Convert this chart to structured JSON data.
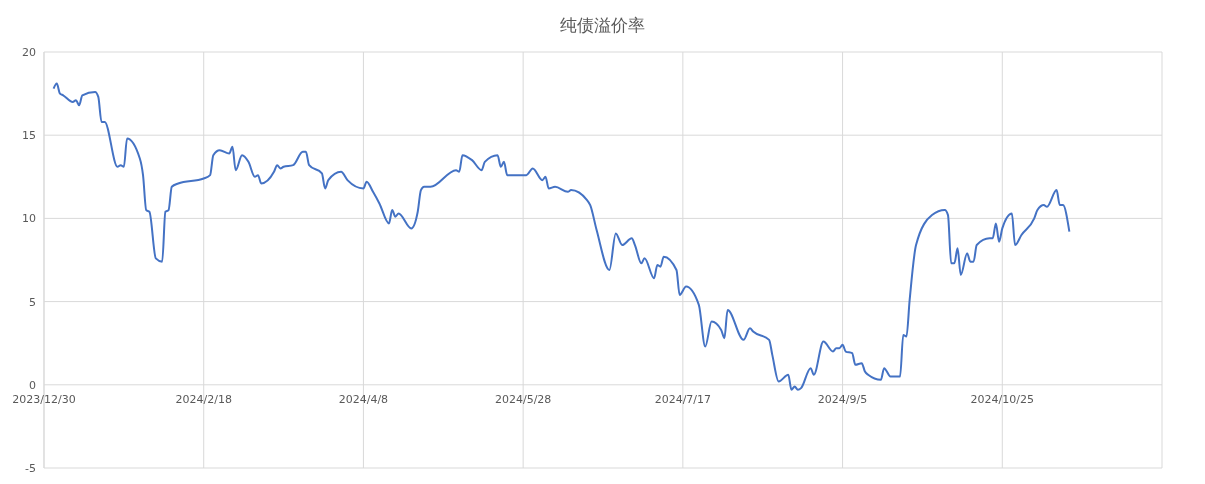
{
  "chart_data": {
    "type": "line",
    "title": "纯债溢价率",
    "color": "#4472c4",
    "marker": "none",
    "line_style": "solid",
    "grid": true,
    "x": [
      "2024-01-02",
      "2024-01-03",
      "2024-01-04",
      "2024-01-05",
      "2024-01-08",
      "2024-01-09",
      "2024-01-10",
      "2024-01-11",
      "2024-01-15",
      "2024-01-16",
      "2024-01-17",
      "2024-01-18",
      "2024-01-22",
      "2024-01-23",
      "2024-01-24",
      "2024-01-25",
      "2024-01-29",
      "2024-01-30",
      "2024-01-31",
      "2024-02-01",
      "2024-02-03",
      "2024-02-05",
      "2024-02-06",
      "2024-02-07",
      "2024-02-08",
      "2024-02-10",
      "2024-02-18",
      "2024-02-20",
      "2024-02-21",
      "2024-02-23",
      "2024-02-26",
      "2024-02-27",
      "2024-02-28",
      "2024-03-01",
      "2024-03-03",
      "2024-03-05",
      "2024-03-06",
      "2024-03-07",
      "2024-03-11",
      "2024-03-12",
      "2024-03-13",
      "2024-03-14",
      "2024-03-17",
      "2024-03-20",
      "2024-03-21",
      "2024-03-22",
      "2024-03-26",
      "2024-03-27",
      "2024-03-28",
      "2024-04-01",
      "2024-04-03",
      "2024-04-08",
      "2024-04-09",
      "2024-04-11",
      "2024-04-13",
      "2024-04-16",
      "2024-04-17",
      "2024-04-18",
      "2024-04-19",
      "2024-04-23",
      "2024-04-25",
      "2024-04-26",
      "2024-04-27",
      "2024-04-29",
      "2024-05-07",
      "2024-05-08",
      "2024-05-09",
      "2024-05-12",
      "2024-05-15",
      "2024-05-16",
      "2024-05-20",
      "2024-05-21",
      "2024-05-22",
      "2024-05-23",
      "2024-05-27",
      "2024-05-29",
      "2024-05-31",
      "2024-06-03",
      "2024-06-04",
      "2024-06-05",
      "2024-06-07",
      "2024-06-11",
      "2024-06-12",
      "2024-06-17",
      "2024-06-18",
      "2024-06-20",
      "2024-06-24",
      "2024-06-26",
      "2024-06-28",
      "2024-07-01",
      "2024-07-02",
      "2024-07-04",
      "2024-07-05",
      "2024-07-08",
      "2024-07-09",
      "2024-07-10",
      "2024-07-11",
      "2024-07-15",
      "2024-07-16",
      "2024-07-18",
      "2024-07-22",
      "2024-07-24",
      "2024-07-26",
      "2024-07-29",
      "2024-07-30",
      "2024-07-31",
      "2024-08-05",
      "2024-08-07",
      "2024-08-08",
      "2024-08-13",
      "2024-08-14",
      "2024-08-16",
      "2024-08-19",
      "2024-08-20",
      "2024-08-21",
      "2024-08-22",
      "2024-08-23",
      "2024-08-26",
      "2024-08-27",
      "2024-08-30",
      "2024-09-02",
      "2024-09-03",
      "2024-09-04",
      "2024-09-05",
      "2024-09-06",
      "2024-09-08",
      "2024-09-09",
      "2024-09-11",
      "2024-09-12",
      "2024-09-13",
      "2024-09-17",
      "2024-09-18",
      "2024-09-20",
      "2024-09-23",
      "2024-09-24",
      "2024-09-25",
      "2024-09-26",
      "2024-09-28",
      "2024-10-03",
      "2024-10-07",
      "2024-10-08",
      "2024-10-09",
      "2024-10-10",
      "2024-10-11",
      "2024-10-12",
      "2024-10-14",
      "2024-10-15",
      "2024-10-16",
      "2024-10-17",
      "2024-10-21",
      "2024-10-22",
      "2024-10-23",
      "2024-10-24",
      "2024-10-25",
      "2024-10-28",
      "2024-10-29",
      "2024-10-31",
      "2024-11-04",
      "2024-11-05",
      "2024-11-07",
      "2024-11-08",
      "2024-11-11",
      "2024-11-12",
      "2024-11-13",
      "2024-11-15"
    ],
    "values": [
      17.8,
      18.1,
      17.5,
      17.4,
      17.0,
      17.1,
      16.8,
      17.4,
      17.6,
      17.3,
      15.8,
      15.8,
      13.1,
      13.2,
      13.1,
      14.8,
      13.6,
      12.6,
      10.5,
      10.4,
      7.6,
      7.4,
      10.4,
      10.5,
      11.9,
      12.1,
      12.4,
      12.6,
      13.8,
      14.1,
      13.9,
      14.3,
      12.9,
      13.8,
      13.4,
      12.5,
      12.6,
      12.1,
      12.8,
      13.2,
      13.0,
      13.1,
      13.2,
      14.0,
      14.0,
      13.2,
      12.7,
      11.8,
      12.3,
      12.8,
      12.3,
      11.8,
      12.2,
      11.6,
      10.9,
      9.7,
      10.5,
      10.1,
      10.3,
      9.4,
      10.4,
      11.7,
      11.9,
      11.9,
      12.9,
      12.8,
      13.8,
      13.5,
      12.9,
      13.4,
      13.8,
      13.1,
      13.4,
      12.6,
      12.6,
      12.6,
      13.0,
      12.3,
      12.5,
      11.8,
      11.9,
      11.6,
      11.7,
      11.1,
      10.8,
      9.3,
      6.9,
      9.1,
      8.4,
      8.8,
      8.4,
      7.3,
      7.6,
      6.4,
      7.2,
      7.1,
      7.7,
      6.9,
      5.4,
      5.9,
      4.8,
      2.3,
      3.8,
      3.3,
      2.8,
      4.5,
      2.7,
      3.4,
      3.2,
      2.7,
      1.8,
      0.2,
      0.6,
      -0.3,
      -0.1,
      -0.3,
      -0.2,
      1.0,
      0.6,
      2.6,
      2.0,
      2.2,
      2.2,
      2.4,
      2.0,
      1.9,
      1.2,
      1.3,
      0.8,
      0.6,
      0.3,
      1.0,
      0.5,
      0.5,
      3.0,
      2.9,
      5.1,
      8.4,
      10.2,
      10.5,
      10.2,
      7.3,
      7.3,
      8.2,
      6.6,
      7.9,
      7.4,
      7.4,
      8.4,
      8.8,
      8.8,
      9.7,
      8.6,
      9.4,
      10.3,
      8.4,
      9.0,
      10.0,
      10.5,
      10.8,
      10.7,
      11.7,
      10.8,
      10.8,
      9.2
    ],
    "xlim": [
      "2023-12-30",
      "2024-12-14"
    ],
    "xticks": [
      {
        "value": "2023-12-30",
        "label": "2023/12/30"
      },
      {
        "value": "2024-02-18",
        "label": "2024/2/18"
      },
      {
        "value": "2024-04-08",
        "label": "2024/4/8"
      },
      {
        "value": "2024-05-28",
        "label": "2024/5/28"
      },
      {
        "value": "2024-07-17",
        "label": "2024/7/17"
      },
      {
        "value": "2024-09-05",
        "label": "2024/9/5"
      },
      {
        "value": "2024-10-25",
        "label": "2024/10/25"
      },
      {
        "value": "2024-12-14",
        "label": null
      }
    ],
    "ylim": [
      -5,
      20
    ],
    "yticks": [
      -5,
      0,
      5,
      10,
      15,
      20
    ]
  }
}
